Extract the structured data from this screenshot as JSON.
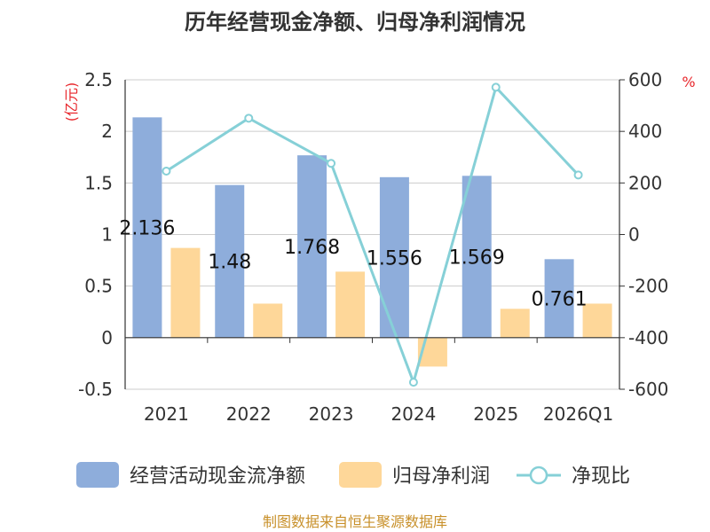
{
  "chart_data": {
    "type": "bar",
    "title": "历年经营现金净额、归母净利润情况",
    "categories": [
      "2021",
      "2022",
      "2023",
      "2024",
      "2025",
      "2026Q1"
    ],
    "y_left": {
      "unit": "(亿元)",
      "ylim": [
        -0.5,
        2.5
      ],
      "ticks": [
        "2.5",
        "2",
        "1.5",
        "1",
        "0.5",
        "0",
        "-0.5"
      ]
    },
    "y_right": {
      "unit": "%",
      "ylim": [
        -600,
        600
      ],
      "ticks": [
        "600",
        "400",
        "200",
        "0",
        "-200",
        "-400",
        "-600"
      ]
    },
    "series": [
      {
        "name": "经营活动现金流净额",
        "type": "bar",
        "axis": "left",
        "color": "#8eaddb",
        "values": [
          2.136,
          1.48,
          1.768,
          1.556,
          1.569,
          0.761
        ],
        "labels": [
          "2.136",
          "1.48",
          "1.768",
          "1.556",
          "1.569",
          "0.761"
        ]
      },
      {
        "name": "归母净利润",
        "type": "bar",
        "axis": "left",
        "color": "#fed799",
        "values": [
          0.87,
          0.33,
          0.64,
          -0.28,
          0.28,
          0.33
        ]
      },
      {
        "name": "净现比",
        "type": "line",
        "axis": "right",
        "color": "#86d0d7",
        "values": [
          246,
          451,
          276,
          -573,
          571,
          231
        ]
      }
    ],
    "grid": true,
    "legend_position": "bottom"
  },
  "source": "制图数据来自恒生聚源数据库"
}
